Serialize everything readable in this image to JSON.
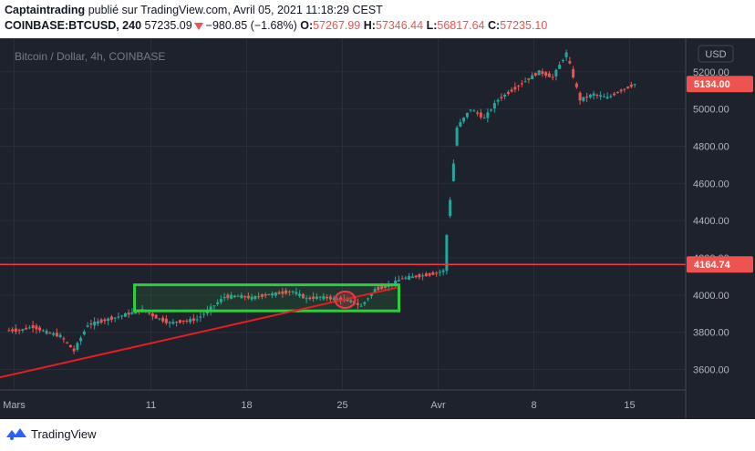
{
  "header": {
    "author": "Captaintrading",
    "published_on": "publié sur TradingView.com, Avril 05, 2021 11:18:29 CEST",
    "symbol": "COINBASE:BTCUSD, 240",
    "last_price": "57235.09",
    "change": "−980.85 (−1.68%)",
    "open_label": "O:",
    "open_value": "57267.99",
    "high_label": "H:",
    "high_value": "57346.44",
    "low_label": "L:",
    "low_value": "56817.64",
    "close_label": "C:",
    "close_value": "57235.10"
  },
  "chart_data": {
    "type": "candlestick",
    "title": "Bitcoin / Dollar, 4h, COINBASE",
    "currency_label": "USD",
    "x_tick_labels": [
      "Mars",
      "11",
      "18",
      "25",
      "Avr",
      "8",
      "15"
    ],
    "y_tick_labels": [
      "3600.00",
      "3800.00",
      "4000.00",
      "4200.00",
      "4400.00",
      "4600.00",
      "4800.00",
      "5000.00",
      "5200.00"
    ],
    "y_ticks": [
      3600,
      3800,
      4000,
      4200,
      4400,
      4600,
      4800,
      5000,
      5200
    ],
    "ylim": [
      3490,
      5380
    ],
    "price_tags": [
      {
        "label": "5134.00",
        "value": 5134,
        "color": "#ef5350"
      },
      {
        "label": "4164.74",
        "value": 4164.74,
        "color": "#ef5350"
      }
    ],
    "horizontal_line": {
      "value": 4164.74,
      "color": "#f23645"
    },
    "trend_line": {
      "from": {
        "x": "Mars 1",
        "y": 3575
      },
      "to": {
        "x": "Mars 29",
        "y": 4040
      },
      "color": "#e51c23"
    },
    "range_box": {
      "x_from": "Mars 10",
      "x_to": "Mars 29",
      "y_from": 3915,
      "y_to": 4055,
      "color": "#2ecc40"
    },
    "marker_circle": {
      "x": "Mars 25",
      "y": 3975,
      "color": "#f23645"
    },
    "price_path": [
      {
        "date": "Mars 1",
        "close": 3810
      },
      {
        "date": "Mars 2",
        "close": 3830
      },
      {
        "date": "Mars 3",
        "close": 3800
      },
      {
        "date": "Mars 4",
        "close": 3780
      },
      {
        "date": "Mars 5",
        "close": 3700
      },
      {
        "date": "Mars 6",
        "close": 3840
      },
      {
        "date": "Mars 7",
        "close": 3860
      },
      {
        "date": "Mars 8",
        "close": 3880
      },
      {
        "date": "Mars 9",
        "close": 3900
      },
      {
        "date": "Mars 10",
        "close": 3920
      },
      {
        "date": "Mars 11",
        "close": 3880
      },
      {
        "date": "Mars 12",
        "close": 3850
      },
      {
        "date": "Mars 13",
        "close": 3860
      },
      {
        "date": "Mars 14",
        "close": 3870
      },
      {
        "date": "Mars 15",
        "close": 3930
      },
      {
        "date": "Mars 16",
        "close": 3990
      },
      {
        "date": "Mars 17",
        "close": 3995
      },
      {
        "date": "Mars 18",
        "close": 3985
      },
      {
        "date": "Mars 19",
        "close": 4000
      },
      {
        "date": "Mars 20",
        "close": 4010
      },
      {
        "date": "Mars 21",
        "close": 4020
      },
      {
        "date": "Mars 22",
        "close": 3980
      },
      {
        "date": "Mars 23",
        "close": 3990
      },
      {
        "date": "Mars 24",
        "close": 3980
      },
      {
        "date": "Mars 25",
        "close": 3975
      },
      {
        "date": "Mars 26",
        "close": 3940
      },
      {
        "date": "Mars 27",
        "close": 4030
      },
      {
        "date": "Mars 28",
        "close": 4050
      },
      {
        "date": "Mars 29",
        "close": 4090
      },
      {
        "date": "Mars 30",
        "close": 4100
      },
      {
        "date": "Mars 31",
        "close": 4110
      },
      {
        "date": "Avr 1",
        "close": 4130
      },
      {
        "date": "Avr 2",
        "close": 4900
      },
      {
        "date": "Avr 3",
        "close": 5000
      },
      {
        "date": "Avr 4",
        "close": 4950
      },
      {
        "date": "Avr 5",
        "close": 5050
      },
      {
        "date": "Avr 6",
        "close": 5100
      },
      {
        "date": "Avr 7",
        "close": 5150
      },
      {
        "date": "Avr 8",
        "close": 5200
      },
      {
        "date": "Avr 9",
        "close": 5170
      },
      {
        "date": "Avr 10",
        "close": 5300
      },
      {
        "date": "Avr 11",
        "close": 5050
      },
      {
        "date": "Avr 12",
        "close": 5080
      },
      {
        "date": "Avr 13",
        "close": 5060
      },
      {
        "date": "Avr 14",
        "close": 5100
      },
      {
        "date": "Avr 15",
        "close": 5134
      }
    ],
    "up_color": "#26a69a",
    "down_color": "#ef5350",
    "grid": true
  },
  "footer": {
    "brand": "TradingView"
  }
}
